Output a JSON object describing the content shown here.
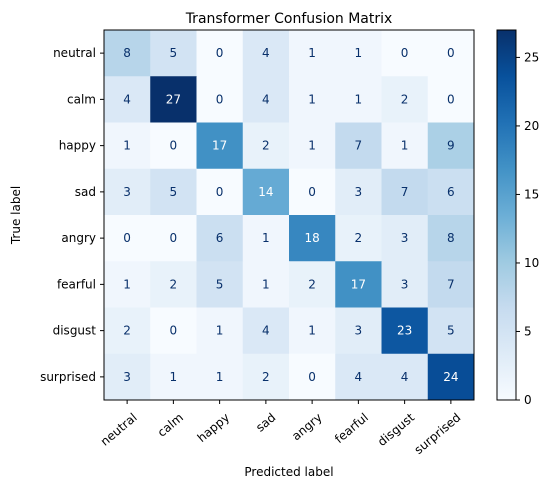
{
  "chart_data": {
    "type": "heatmap",
    "title": "Transformer Confusion Matrix",
    "xlabel": "Predicted label",
    "ylabel": "True label",
    "labels": [
      "neutral",
      "calm",
      "happy",
      "sad",
      "angry",
      "fearful",
      "disgust",
      "surprised"
    ],
    "matrix": [
      [
        8,
        5,
        0,
        4,
        1,
        1,
        0,
        0
      ],
      [
        4,
        27,
        0,
        4,
        1,
        1,
        2,
        0
      ],
      [
        1,
        0,
        17,
        2,
        1,
        7,
        1,
        9
      ],
      [
        3,
        5,
        0,
        14,
        0,
        3,
        7,
        6
      ],
      [
        0,
        0,
        6,
        1,
        18,
        2,
        3,
        8
      ],
      [
        1,
        2,
        5,
        1,
        2,
        17,
        3,
        7
      ],
      [
        2,
        0,
        1,
        4,
        1,
        3,
        23,
        5
      ],
      [
        3,
        1,
        1,
        2,
        0,
        4,
        4,
        24
      ]
    ],
    "colorbar": {
      "min": 0,
      "max": 27,
      "ticks": [
        0,
        5,
        10,
        15,
        20,
        25
      ],
      "colormap": "Blues"
    }
  }
}
